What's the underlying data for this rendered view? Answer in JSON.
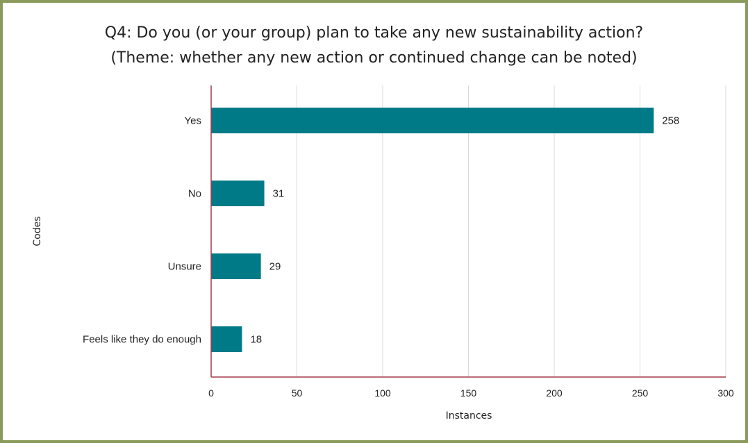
{
  "chart_data": {
    "type": "bar",
    "orientation": "horizontal",
    "title": "Q4: Do you (or your group) plan to take any new sustainability action?",
    "subtitle": "(Theme: whether any new action or continued change can be noted)",
    "xlabel": "Instances",
    "ylabel": "Codes",
    "categories": [
      "Yes",
      "No",
      "Unsure",
      "Feels like they do enough"
    ],
    "values": [
      258,
      31,
      29,
      18
    ],
    "data_labels": [
      "258",
      "31",
      "29",
      "18"
    ],
    "xlim": [
      0,
      300
    ],
    "x_ticks": [
      "0",
      "50",
      "100",
      "150",
      "200",
      "250",
      "300"
    ],
    "grid": "vertical",
    "legend": "none",
    "bar_color": "#007a87",
    "axis_color": "#a33a4a",
    "border_color": "#8a9a5b"
  }
}
